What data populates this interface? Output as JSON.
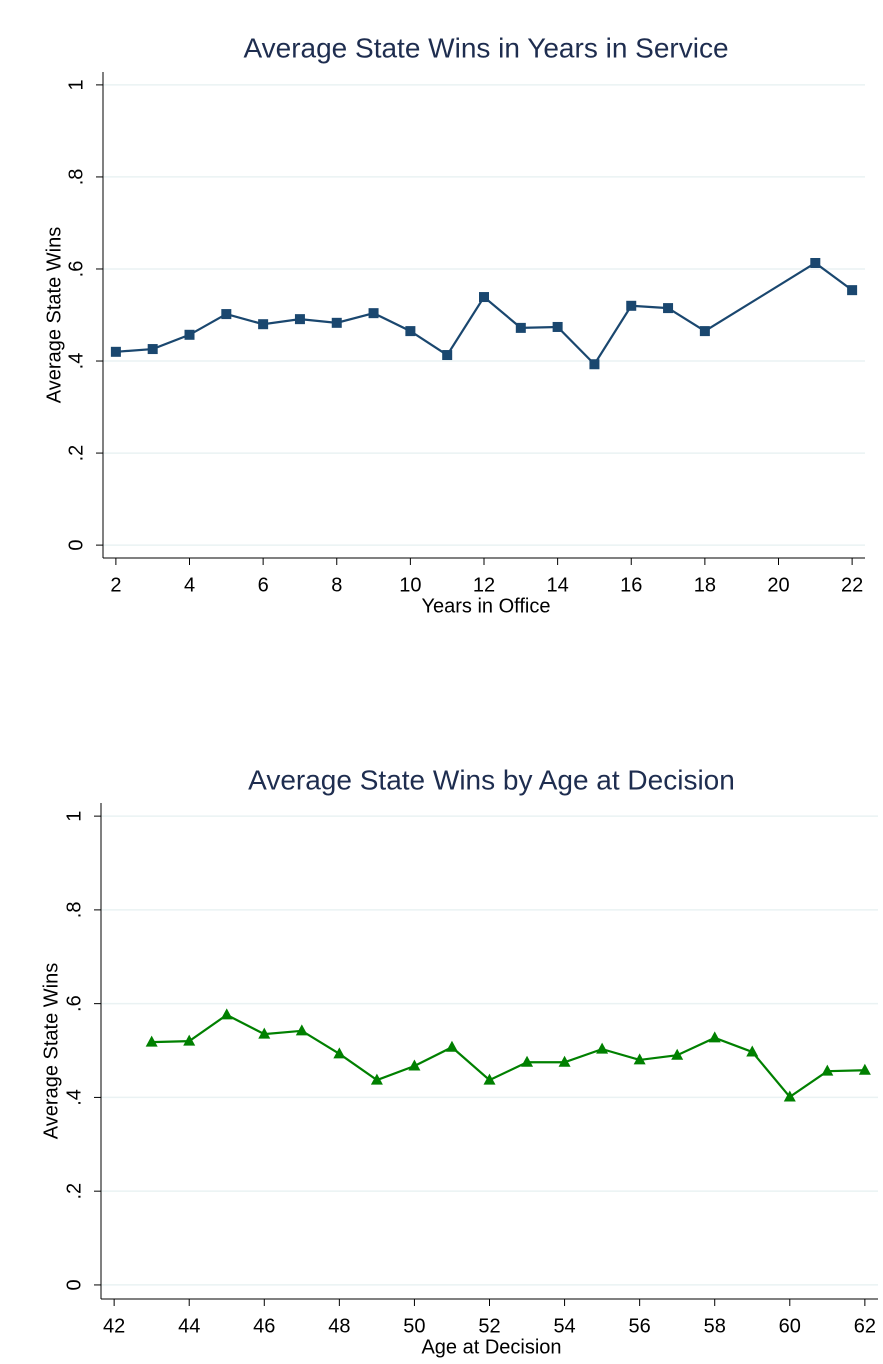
{
  "chart_data": [
    {
      "type": "line",
      "title": "Average State Wins in Years in Service",
      "x_label": "Years in Office",
      "y_label": "Average State Wins",
      "series": [
        {
          "name": "Average State Wins",
          "color": "#1a476f",
          "marker": "square",
          "x": [
            2,
            3,
            4,
            5,
            6,
            7,
            8,
            9,
            10,
            11,
            12,
            13,
            14,
            15,
            16,
            17,
            18,
            21,
            22
          ],
          "values": [
            0.42,
            0.426,
            0.457,
            0.502,
            0.48,
            0.491,
            0.483,
            0.504,
            0.465,
            0.413,
            0.539,
            0.472,
            0.474,
            0.393,
            0.52,
            0.515,
            0.465,
            0.613,
            0.554
          ]
        }
      ],
      "xlim": [
        1.65,
        22.35
      ],
      "xticks": [
        2,
        4,
        6,
        8,
        10,
        12,
        14,
        16,
        18,
        20,
        22
      ],
      "ylim": [
        -0.028,
        1.028
      ],
      "yticks": [
        0,
        {
          "value": 0.2,
          "label": ".2"
        },
        {
          "value": 0.4,
          "label": ".4"
        },
        {
          "value": 0.6,
          "label": ".6"
        },
        {
          "value": 0.8,
          "label": ".8"
        },
        1
      ],
      "grid": true
    },
    {
      "type": "line",
      "title": "Average State Wins by Age at Decision",
      "x_label": "Age at Decision",
      "y_label": "Average State Wins",
      "series": [
        {
          "name": "Average State Wins",
          "color": "#008000",
          "marker": "triangle",
          "x": [
            43,
            44,
            45,
            46,
            47,
            48,
            49,
            50,
            51,
            52,
            53,
            54,
            55,
            56,
            57,
            58,
            59,
            60,
            61,
            62
          ],
          "values": [
            0.518,
            0.52,
            0.576,
            0.535,
            0.542,
            0.493,
            0.437,
            0.467,
            0.507,
            0.437,
            0.475,
            0.475,
            0.503,
            0.48,
            0.49,
            0.527,
            0.497,
            0.401,
            0.456,
            0.458
          ]
        }
      ],
      "xlim": [
        41.65,
        62.35
      ],
      "xticks": [
        42,
        44,
        46,
        48,
        50,
        52,
        54,
        56,
        58,
        60,
        62
      ],
      "ylim": [
        -0.03,
        1.028
      ],
      "yticks": [
        0,
        {
          "value": 0.2,
          "label": ".2"
        },
        {
          "value": 0.4,
          "label": ".4"
        },
        {
          "value": 0.6,
          "label": ".6"
        },
        {
          "value": 0.8,
          "label": ".8"
        },
        1
      ],
      "grid": true
    }
  ]
}
